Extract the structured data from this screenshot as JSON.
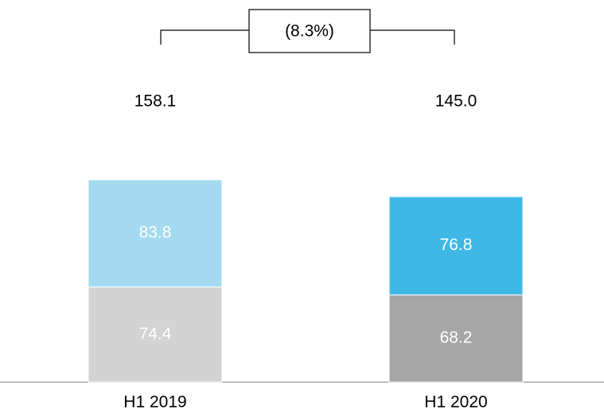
{
  "chart_data": {
    "type": "stacked_bar",
    "categories": [
      "H1 2019",
      "H1 2020"
    ],
    "series": [
      {
        "colors": [
          "#d3d3d3",
          "#a6a6a6"
        ],
        "values": [
          74.4,
          68.2
        ]
      },
      {
        "colors": [
          "#a3daf0",
          "#3fb8e6"
        ],
        "values": [
          83.8,
          76.8
        ]
      }
    ],
    "totals": {
      "values": [
        158.1,
        145.0
      ],
      "value_labels": [
        "158.1",
        "145.0"
      ]
    },
    "annotation": "(8.3%)"
  }
}
